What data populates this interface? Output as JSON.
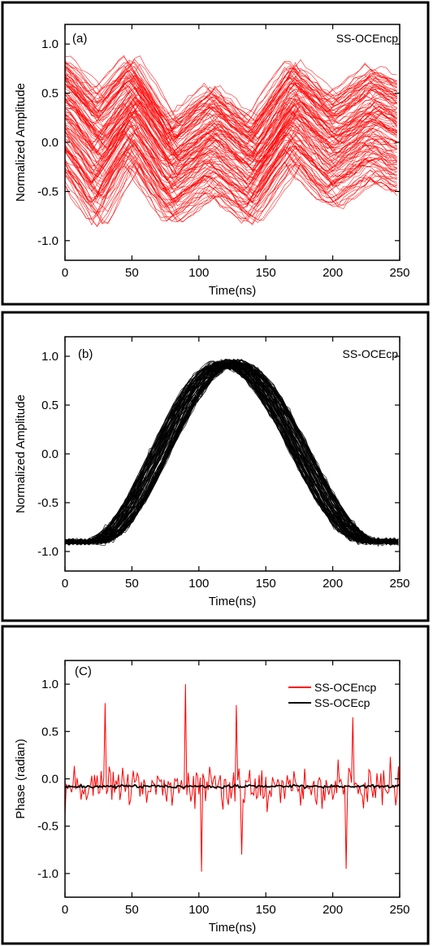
{
  "chart_data": [
    {
      "type": "line",
      "panel_label": "(a)",
      "annotation": "SS-OCEncp",
      "xlabel": "Time(ns)",
      "ylabel": "Normalized Amplitude",
      "xlim": [
        0,
        250
      ],
      "ylim": [
        -1.2,
        1.2
      ],
      "xticks": [
        0,
        50,
        100,
        150,
        200,
        250
      ],
      "yticks": [
        -1.0,
        -0.5,
        0.0,
        0.5,
        1.0
      ],
      "series_color": "#ff0000",
      "trace_count": 120,
      "envelope": {
        "x": [
          0,
          25,
          50,
          80,
          110,
          140,
          170,
          200,
          230,
          250
        ],
        "upper": [
          0.95,
          0.6,
          0.95,
          0.3,
          0.65,
          0.3,
          0.9,
          0.55,
          0.85,
          0.7
        ],
        "lower": [
          -0.4,
          -0.95,
          -0.3,
          -0.9,
          -0.6,
          -0.9,
          -0.3,
          -0.75,
          -0.45,
          -0.6
        ]
      }
    },
    {
      "type": "line",
      "panel_label": "(b)",
      "annotation": "SS-OCEcp",
      "xlabel": "Time(ns)",
      "ylabel": "Normalized Amplitude",
      "xlim": [
        0,
        250
      ],
      "ylim": [
        -1.2,
        1.2
      ],
      "xticks": [
        0,
        50,
        100,
        150,
        200,
        250
      ],
      "yticks": [
        -1.0,
        -0.5,
        0.0,
        0.5,
        1.0
      ],
      "series_color": "#000000",
      "trace_count": 100,
      "shape": {
        "min": -0.9,
        "max": 0.95,
        "rise_start": 20,
        "peak": 122,
        "fall_end": 230
      }
    },
    {
      "type": "line",
      "panel_label": "(C)",
      "xlabel": "Time(ns)",
      "ylabel": "Phase (radian)",
      "xlim": [
        0,
        250
      ],
      "ylim": [
        -1.25,
        1.25
      ],
      "xticks": [
        0,
        50,
        100,
        150,
        200,
        250
      ],
      "yticks": [
        -1.0,
        -0.5,
        0.0,
        0.5,
        1.0
      ],
      "legend_position": "top-right",
      "series": [
        {
          "name": "SS-OCEncp",
          "color": "#ff0000",
          "baseline": -0.08,
          "spikes": [
            [
              30,
              0.8
            ],
            [
              90,
              1.0
            ],
            [
              102,
              -0.98
            ],
            [
              128,
              0.78
            ],
            [
              132,
              -0.8
            ],
            [
              210,
              -0.95
            ],
            [
              215,
              0.65
            ]
          ]
        },
        {
          "name": "SS-OCEcp",
          "color": "#000000",
          "baseline": -0.08
        }
      ]
    }
  ]
}
